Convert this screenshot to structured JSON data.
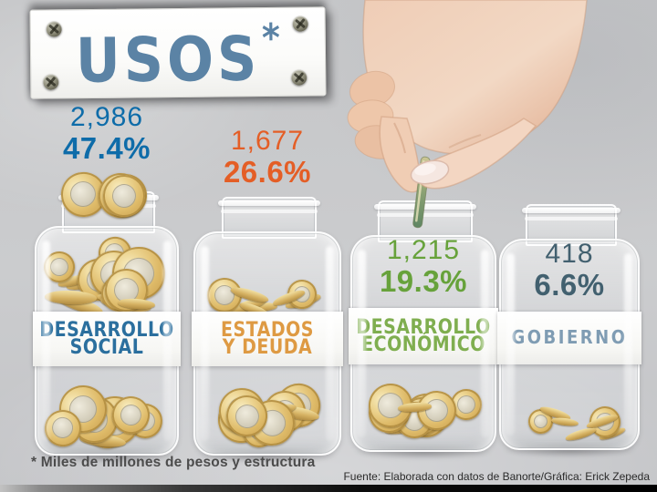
{
  "title": {
    "text": "USOS",
    "asterisk": "*",
    "color": "#5b83a5"
  },
  "jars": [
    {
      "name": "Desarrollo Social",
      "value": "2,986",
      "percent": "47.4%",
      "label": [
        "DESARROLLO",
        "SOCIAL"
      ],
      "number_color": "#0e6ca9",
      "label_color": "#2b6f9e",
      "fill_level": "lleno"
    },
    {
      "name": "Estados y Deuda",
      "value": "1,677",
      "percent": "26.6%",
      "label": [
        "ESTADOS",
        "Y DEUDA"
      ],
      "number_color": "#e45e26",
      "label_color": "#de9a43",
      "fill_level": "dos tercios"
    },
    {
      "name": "Desarrollo Económico",
      "value": "1,215",
      "percent": "19.3%",
      "label": [
        "DESARROLLO",
        "ECONÓMICO"
      ],
      "number_color": "#67a23b",
      "label_color": "#7fae4f",
      "fill_level": "un tercio"
    },
    {
      "name": "Gobierno",
      "value": "418",
      "percent": "6.6%",
      "label": [
        "GOBIERNO"
      ],
      "number_color": "#42606f",
      "label_color": "#7f9cb3",
      "fill_level": "bajo"
    }
  ],
  "footnote": "* Miles de millones de pesos y estructura",
  "source": "Fuente: Elaborada con datos de Banorte/Gráfica: Erick Zepeda",
  "chart_data": {
    "type": "bar",
    "title": "USOS*",
    "categories": [
      "Desarrollo Social",
      "Estados y Deuda",
      "Desarrollo Económico",
      "Gobierno"
    ],
    "series": [
      {
        "name": "Miles de millones de pesos",
        "values": [
          2986,
          1677,
          1215,
          418
        ]
      },
      {
        "name": "Estructura %",
        "values": [
          47.4,
          26.6,
          19.3,
          6.6
        ]
      }
    ],
    "units": "Miles de millones de pesos y estructura",
    "note": "* Miles de millones de pesos y estructura",
    "source": "Fuente: Elaborada con datos de Banorte/Gráfica: Erick Zepeda",
    "legend_position": "none",
    "grid": false
  }
}
